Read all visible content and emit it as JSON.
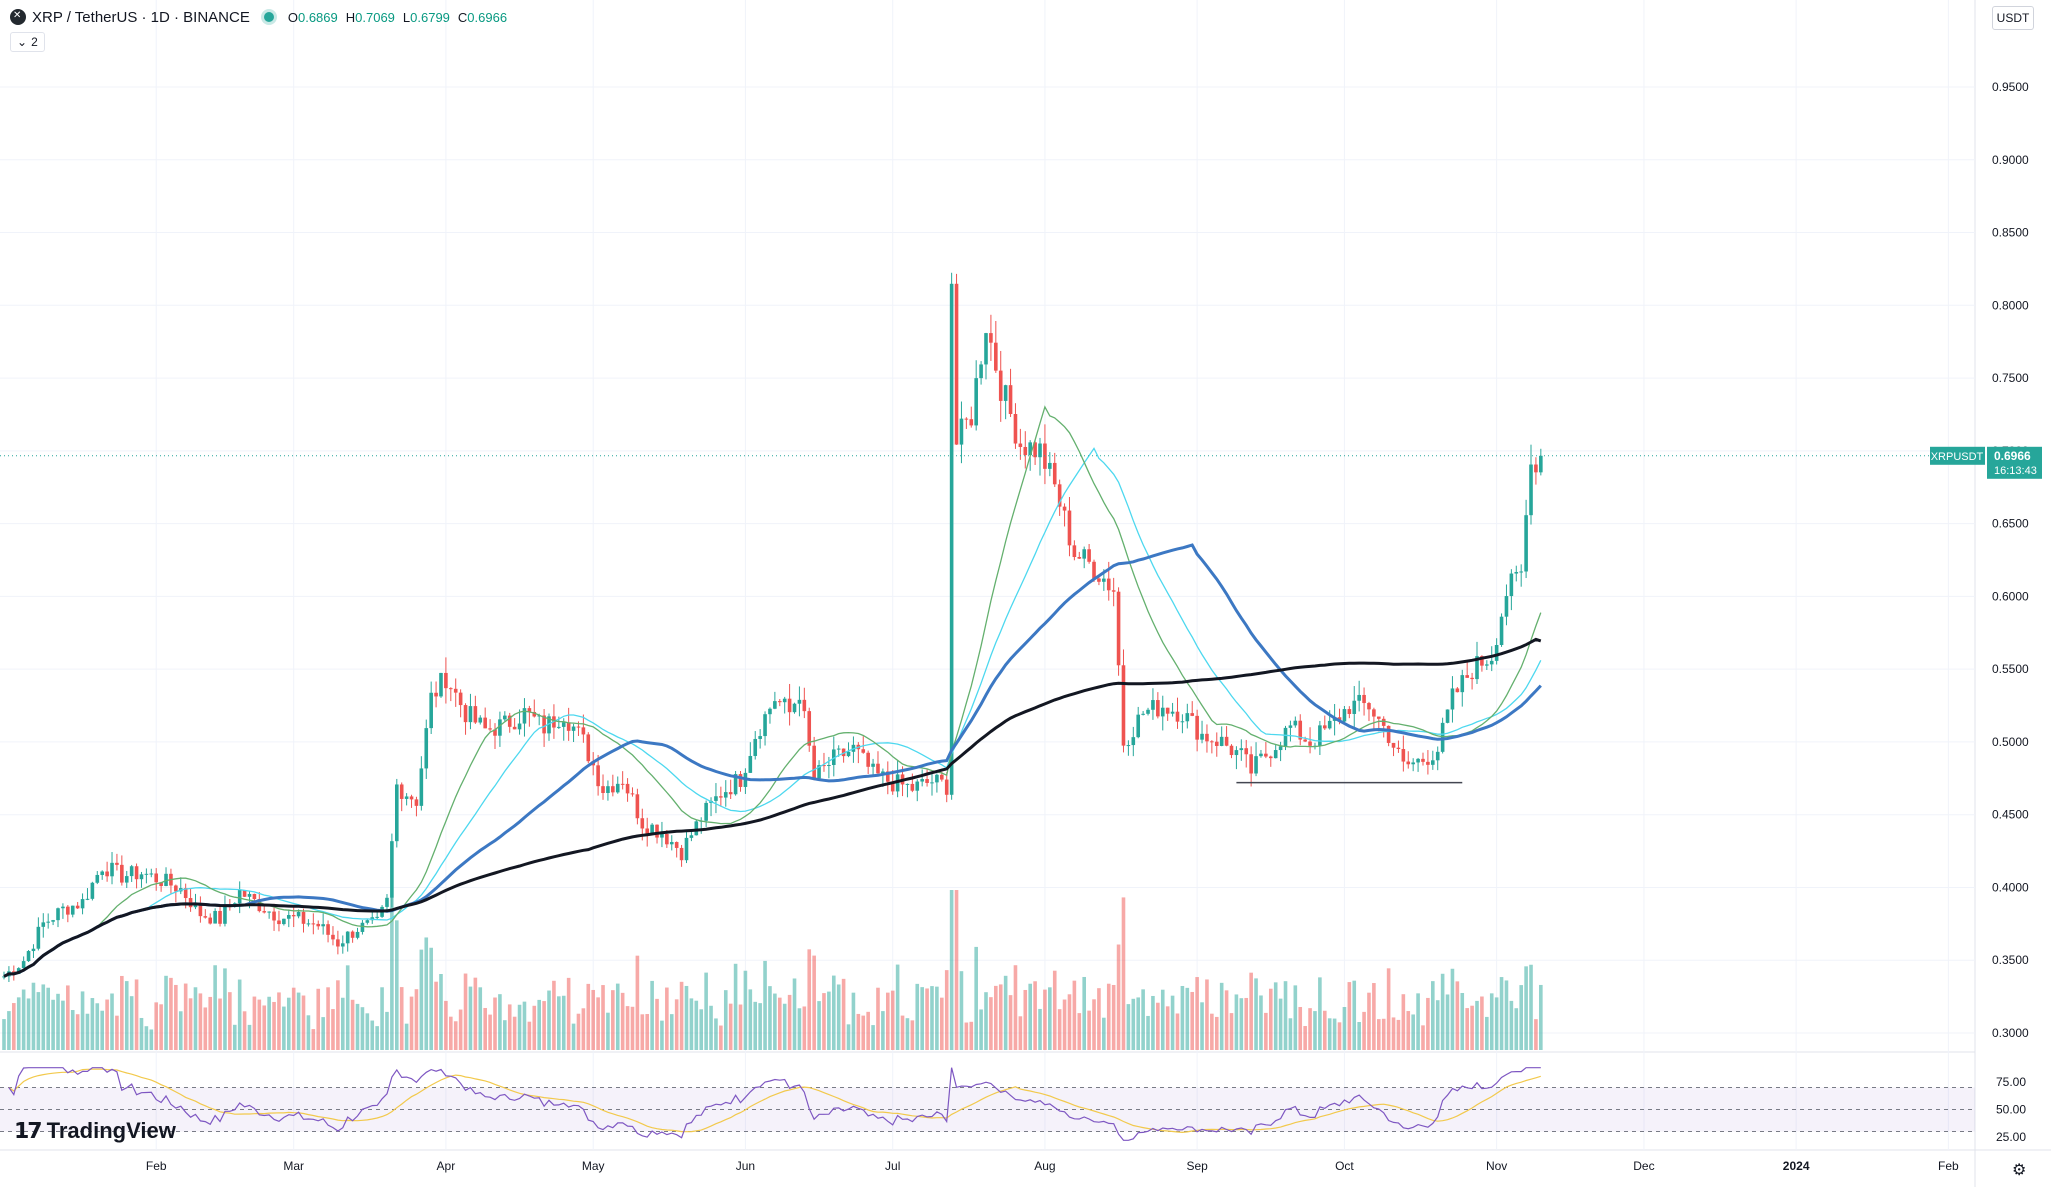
{
  "header": {
    "symbol": "XRP / TetherUS · 1D · BINANCE",
    "ohlc": [
      {
        "k": "O",
        "v": "0.6869"
      },
      {
        "k": "H",
        "v": "0.7069"
      },
      {
        "k": "L",
        "v": "0.6799"
      },
      {
        "k": "C",
        "v": "0.6966"
      }
    ],
    "indicator_count": "2",
    "currency": "USDT"
  },
  "price_label": {
    "symbol": "XRPUSDT",
    "price": "0.6966",
    "countdown": "16:13:43"
  },
  "brand": "TradingView",
  "colors": {
    "up": "#26a69a",
    "down": "#ef5350",
    "ma_thick": "#131722",
    "ma_blue": "#3c78c3",
    "ma_cyan": "#4dd8ef",
    "ma_green": "#64b06e",
    "rsi": "#7e57c2",
    "rsi_ma": "#f2c94c"
  },
  "chart_data": {
    "type": "candlestick",
    "y_ticks": [
      "0.9500",
      "0.9000",
      "0.8500",
      "0.8000",
      "0.7500",
      "0.7000",
      "0.6500",
      "0.6000",
      "0.5500",
      "0.5000",
      "0.4500",
      "0.4000",
      "0.3500",
      "0.3000"
    ],
    "x_ticks": [
      "Feb",
      "Mar",
      "Apr",
      "May",
      "Jun",
      "Jul",
      "Aug",
      "Sep",
      "Oct",
      "Nov",
      "Dec",
      "2024",
      "Feb"
    ],
    "rsi_ticks": [
      "75.00",
      "50.00",
      "25.00"
    ],
    "ylim": [
      0.295,
      0.965
    ],
    "rsi_ylim": [
      20,
      90
    ],
    "candles_note": "daily XRP/USDT Jan–Nov 2023",
    "price_path": [
      [
        "2023-01-01",
        0.339
      ],
      [
        "2023-01-05",
        0.35
      ],
      [
        "2023-01-09",
        0.375
      ],
      [
        "2023-01-13",
        0.385
      ],
      [
        "2023-01-17",
        0.39
      ],
      [
        "2023-01-21",
        0.415
      ],
      [
        "2023-01-25",
        0.408
      ],
      [
        "2023-01-29",
        0.41
      ],
      [
        "2023-02-02",
        0.405
      ],
      [
        "2023-02-06",
        0.399
      ],
      [
        "2023-02-10",
        0.382
      ],
      [
        "2023-02-14",
        0.378
      ],
      [
        "2023-02-18",
        0.397
      ],
      [
        "2023-02-22",
        0.388
      ],
      [
        "2023-02-26",
        0.38
      ],
      [
        "2023-03-02",
        0.378
      ],
      [
        "2023-03-06",
        0.374
      ],
      [
        "2023-03-10",
        0.362
      ],
      [
        "2023-03-14",
        0.372
      ],
      [
        "2023-03-18",
        0.375
      ],
      [
        "2023-03-20",
        0.39
      ],
      [
        "2023-03-22",
        0.47
      ],
      [
        "2023-03-26",
        0.46
      ],
      [
        "2023-03-29",
        0.53
      ],
      [
        "2023-04-01",
        0.545
      ],
      [
        "2023-04-05",
        0.52
      ],
      [
        "2023-04-09",
        0.508
      ],
      [
        "2023-04-13",
        0.512
      ],
      [
        "2023-04-17",
        0.52
      ],
      [
        "2023-04-21",
        0.51
      ],
      [
        "2023-04-25",
        0.52
      ],
      [
        "2023-04-29",
        0.5
      ],
      [
        "2023-05-03",
        0.468
      ],
      [
        "2023-05-07",
        0.475
      ],
      [
        "2023-05-11",
        0.445
      ],
      [
        "2023-05-15",
        0.438
      ],
      [
        "2023-05-19",
        0.425
      ],
      [
        "2023-05-23",
        0.448
      ],
      [
        "2023-05-27",
        0.465
      ],
      [
        "2023-05-31",
        0.475
      ],
      [
        "2023-06-03",
        0.505
      ],
      [
        "2023-06-07",
        0.53
      ],
      [
        "2023-06-10",
        0.52
      ],
      [
        "2023-06-12",
        0.535
      ],
      [
        "2023-06-15",
        0.475
      ],
      [
        "2023-06-19",
        0.488
      ],
      [
        "2023-06-23",
        0.495
      ],
      [
        "2023-06-27",
        0.478
      ],
      [
        "2023-07-01",
        0.472
      ],
      [
        "2023-07-05",
        0.468
      ],
      [
        "2023-07-09",
        0.473
      ],
      [
        "2023-07-12",
        0.47
      ],
      [
        "2023-07-13",
        0.818
      ],
      [
        "2023-07-14",
        0.705
      ],
      [
        "2023-07-17",
        0.725
      ],
      [
        "2023-07-20",
        0.788
      ],
      [
        "2023-07-23",
        0.745
      ],
      [
        "2023-07-27",
        0.705
      ],
      [
        "2023-07-31",
        0.7
      ],
      [
        "2023-08-03",
        0.675
      ],
      [
        "2023-08-07",
        0.63
      ],
      [
        "2023-08-11",
        0.62
      ],
      [
        "2023-08-15",
        0.605
      ],
      [
        "2023-08-17",
        0.5
      ],
      [
        "2023-08-21",
        0.52
      ],
      [
        "2023-08-25",
        0.525
      ],
      [
        "2023-08-29",
        0.52
      ],
      [
        "2023-09-02",
        0.505
      ],
      [
        "2023-09-06",
        0.5
      ],
      [
        "2023-09-10",
        0.49
      ],
      [
        "2023-09-12",
        0.48
      ],
      [
        "2023-09-16",
        0.495
      ],
      [
        "2023-09-20",
        0.51
      ],
      [
        "2023-09-24",
        0.5
      ],
      [
        "2023-09-28",
        0.51
      ],
      [
        "2023-10-02",
        0.525
      ],
      [
        "2023-10-06",
        0.525
      ],
      [
        "2023-10-10",
        0.505
      ],
      [
        "2023-10-13",
        0.483
      ],
      [
        "2023-10-17",
        0.488
      ],
      [
        "2023-10-20",
        0.495
      ],
      [
        "2023-10-23",
        0.53
      ],
      [
        "2023-10-27",
        0.55
      ],
      [
        "2023-10-31",
        0.56
      ],
      [
        "2023-11-03",
        0.603
      ],
      [
        "2023-11-06",
        0.615
      ],
      [
        "2023-11-07",
        0.655
      ],
      [
        "2023-11-08",
        0.7
      ],
      [
        "2023-11-09",
        0.686
      ],
      [
        "2023-11-10",
        0.697
      ]
    ],
    "support_line": {
      "y": 0.472,
      "from": "2023-09-09",
      "to": "2023-10-25"
    },
    "last_price": 0.6966
  }
}
